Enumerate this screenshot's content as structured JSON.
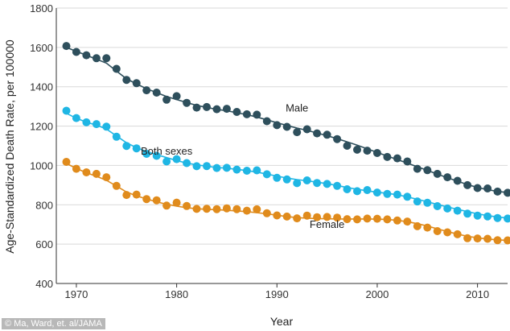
{
  "credit": "© Ma, Ward, et. al/JAMA",
  "chart_data": {
    "type": "line",
    "xlabel": "Year",
    "ylabel": "Age-Standardized Death Rate, per 100000",
    "xlim": [
      1968,
      2013
    ],
    "ylim": [
      400,
      1800
    ],
    "xticks": [
      1970,
      1980,
      1990,
      2000,
      2010
    ],
    "yticks": [
      400,
      600,
      800,
      1000,
      1200,
      1400,
      1600,
      1800
    ],
    "grid": "horizontal",
    "x": [
      1969,
      1970,
      1971,
      1972,
      1973,
      1974,
      1975,
      1976,
      1977,
      1978,
      1979,
      1980,
      1981,
      1982,
      1983,
      1984,
      1985,
      1986,
      1987,
      1988,
      1989,
      1990,
      1991,
      1992,
      1993,
      1994,
      1995,
      1996,
      1997,
      1998,
      1999,
      2000,
      2001,
      2002,
      2003,
      2004,
      2005,
      2006,
      2007,
      2008,
      2009,
      2010,
      2011,
      2012,
      2013
    ],
    "series": [
      {
        "name": "Male",
        "color": "#2e4f5c",
        "values": [
          1607,
          1577,
          1560,
          1545,
          1545,
          1491,
          1435,
          1418,
          1382,
          1370,
          1334,
          1352,
          1318,
          1294,
          1297,
          1286,
          1288,
          1272,
          1260,
          1258,
          1225,
          1205,
          1196,
          1169,
          1184,
          1163,
          1156,
          1134,
          1100,
          1080,
          1075,
          1063,
          1043,
          1036,
          1020,
          983,
          976,
          957,
          940,
          922,
          900,
          885,
          883,
          867,
          861
        ],
        "trend": [
          1600,
          1580,
          1560,
          1540,
          1520,
          1480,
          1440,
          1415,
          1390,
          1370,
          1350,
          1335,
          1320,
          1305,
          1295,
          1285,
          1278,
          1268,
          1258,
          1246,
          1232,
          1217,
          1203,
          1190,
          1178,
          1165,
          1151,
          1136,
          1120,
          1103,
          1085,
          1066,
          1048,
          1030,
          1012,
          993,
          975,
          956,
          938,
          920,
          903,
          888,
          877,
          868,
          862
        ],
        "label_at": [
          1992,
          1273
        ]
      },
      {
        "name": "Both sexes",
        "color": "#1fb6e4",
        "values": [
          1278,
          1241,
          1219,
          1210,
          1197,
          1146,
          1099,
          1087,
          1059,
          1049,
          1020,
          1032,
          1012,
          996,
          997,
          987,
          988,
          979,
          973,
          975,
          955,
          937,
          929,
          910,
          924,
          911,
          906,
          896,
          879,
          869,
          875,
          862,
          855,
          852,
          841,
          817,
          810,
          793,
          781,
          770,
          755,
          745,
          741,
          733,
          730
        ],
        "trend": [
          1265,
          1240,
          1220,
          1205,
          1185,
          1150,
          1115,
          1090,
          1070,
          1055,
          1040,
          1025,
          1012,
          1003,
          996,
          990,
          986,
          980,
          974,
          966,
          956,
          946,
          936,
          928,
          922,
          915,
          907,
          898,
          888,
          879,
          871,
          864,
          858,
          851,
          840,
          828,
          815,
          802,
          789,
          777,
          765,
          754,
          745,
          738,
          733
        ],
        "label_at": [
          1979,
          1055
        ]
      },
      {
        "name": "Female",
        "color": "#e08b1c",
        "values": [
          1018,
          983,
          965,
          957,
          940,
          896,
          850,
          852,
          829,
          823,
          796,
          811,
          794,
          779,
          780,
          778,
          782,
          778,
          770,
          777,
          757,
          746,
          740,
          731,
          745,
          737,
          738,
          735,
          727,
          726,
          730,
          729,
          726,
          720,
          715,
          691,
          684,
          666,
          660,
          650,
          630,
          629,
          627,
          620,
          619
        ],
        "trend": [
          1010,
          985,
          963,
          945,
          925,
          895,
          865,
          845,
          830,
          815,
          803,
          793,
          785,
          780,
          777,
          775,
          772,
          769,
          765,
          760,
          754,
          747,
          740,
          735,
          732,
          730,
          729,
          728,
          728,
          728,
          728,
          727,
          725,
          721,
          714,
          704,
          692,
          678,
          664,
          651,
          640,
          632,
          626,
          622,
          619
        ],
        "label_at": [
          1995,
          683
        ]
      }
    ]
  }
}
